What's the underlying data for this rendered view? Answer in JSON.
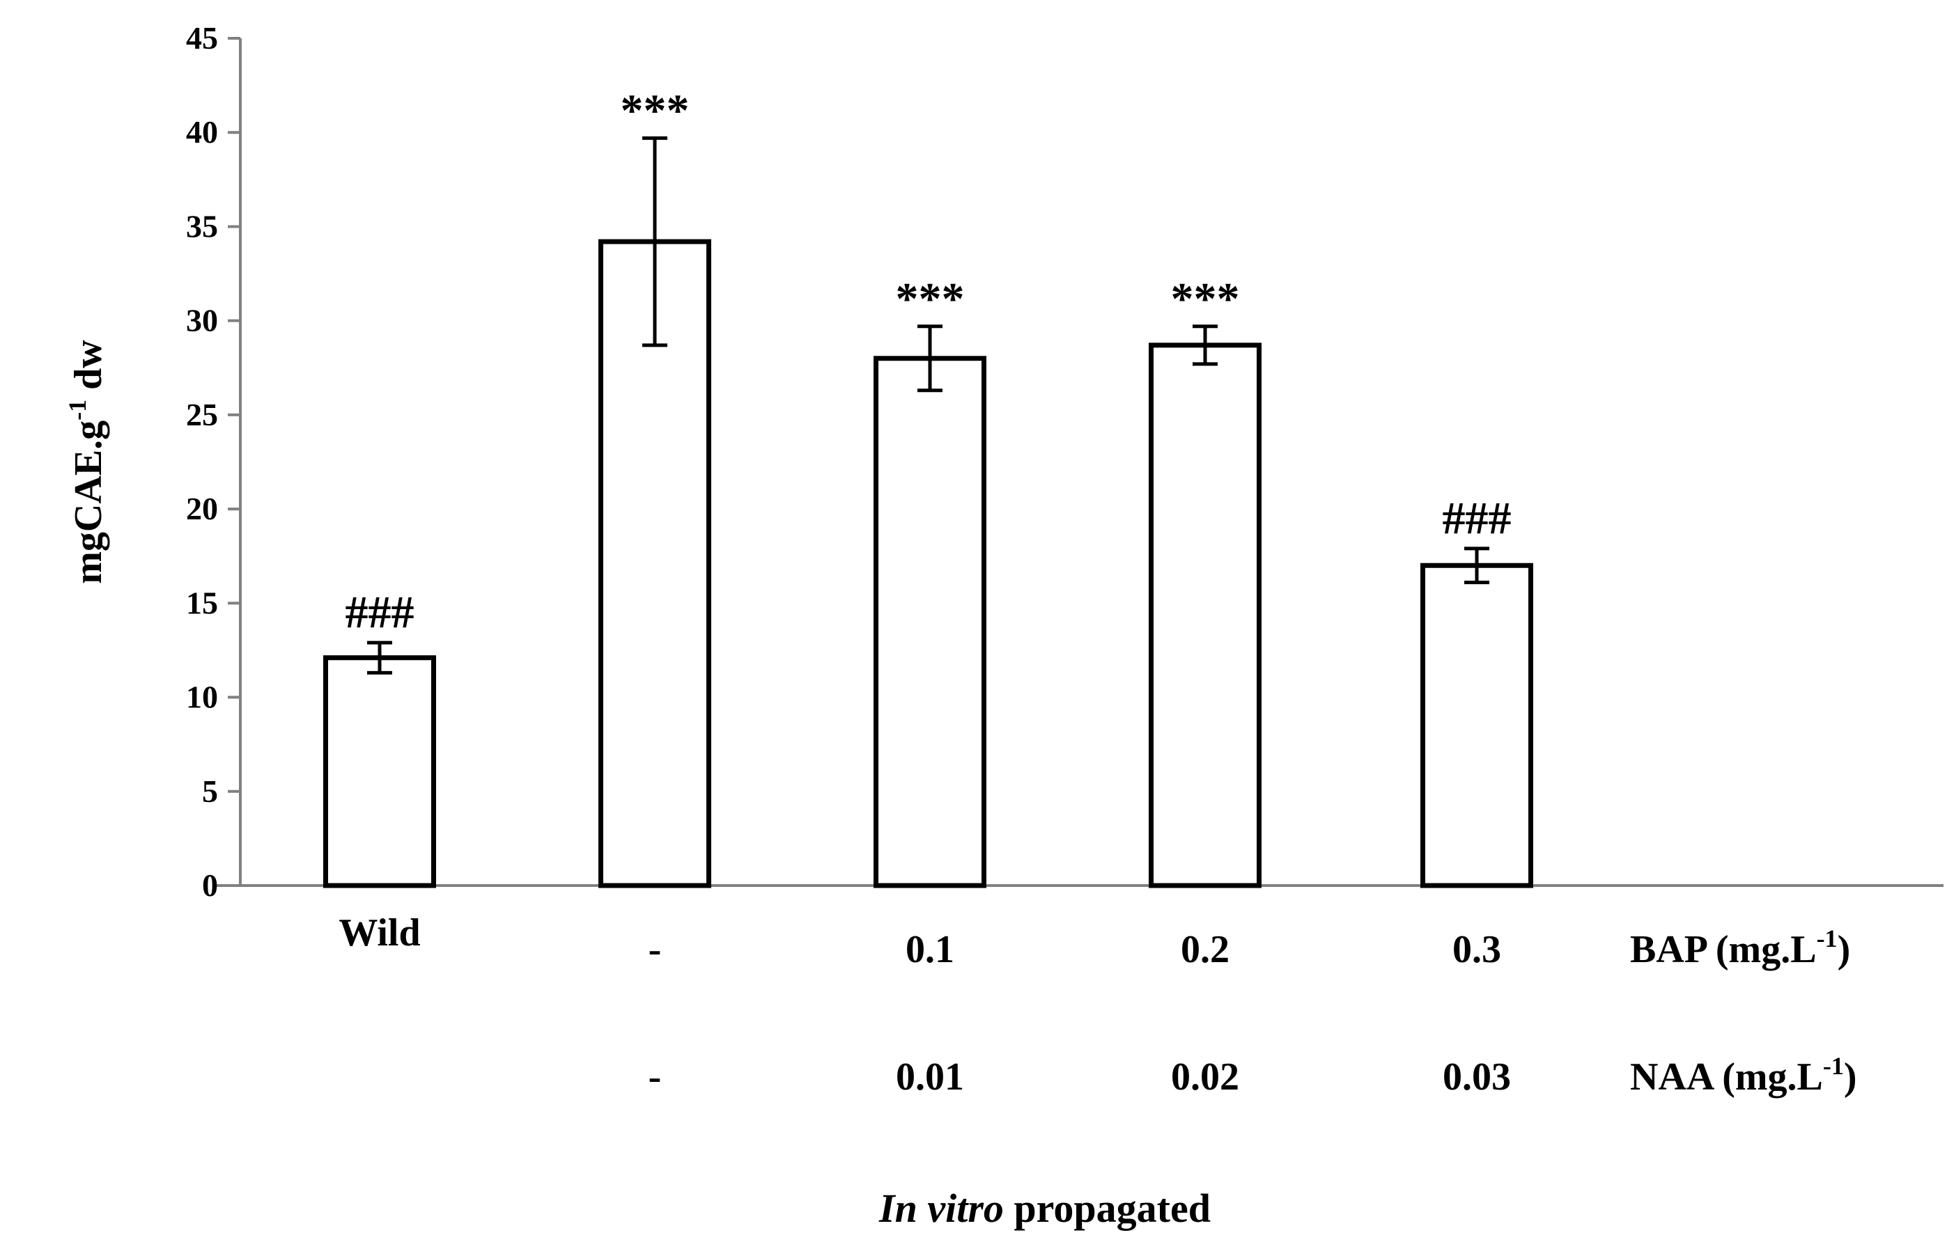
{
  "chart_data": {
    "type": "bar",
    "title": "",
    "ylabel": {
      "text": "mgCAE.g",
      "sup": "-1",
      "suffix": " dw"
    },
    "xlabel": {
      "italic": "In vitro",
      "rest": " propagated"
    },
    "ylim": [
      0,
      45
    ],
    "yticks": [
      0,
      5,
      10,
      15,
      20,
      25,
      30,
      35,
      40,
      45
    ],
    "categories": [
      "Wild",
      "-|-",
      "0.1|0.01",
      "0.2|0.02",
      "0.3|0.03"
    ],
    "values": [
      12.1,
      34.2,
      28.0,
      28.7,
      17.0
    ],
    "errors": [
      0.8,
      5.5,
      1.7,
      1.0,
      0.9
    ],
    "annotations": [
      "###",
      "***",
      "***",
      "***",
      "###"
    ],
    "category_rows": [
      {
        "label": "BAP (mg.L",
        "sup": "-1",
        "suffix": ")",
        "values": [
          "",
          "-",
          "0.1",
          "0.2",
          "0.3"
        ]
      },
      {
        "label": "NAA (mg.L",
        "sup": "-1",
        "suffix": ")",
        "values": [
          "",
          "-",
          "0.01",
          "0.02",
          "0.03"
        ]
      }
    ],
    "wild_label": "Wild",
    "bar_color": "#ffffff",
    "edge_color": "#000000",
    "axis_color": "#808080"
  }
}
